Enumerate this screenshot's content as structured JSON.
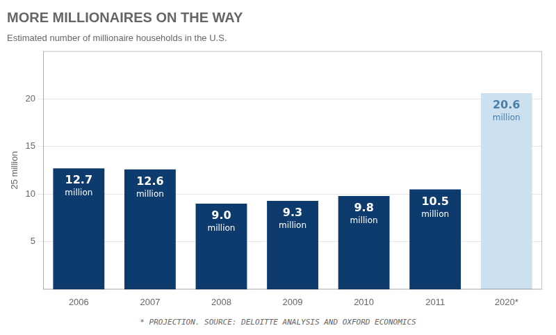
{
  "chart_data": {
    "type": "bar",
    "title": "MORE MILLIONAIRES ON THE WAY",
    "subtitle": "Estimated number of millionaire households in the U.S.",
    "y_label": "25 million",
    "annotations": [
      "* PROJECTION. SOURCE: DELOITTE ANALYSIS AND OXFORD ECONOMICS"
    ],
    "categories": [
      "2006",
      "2007",
      "2008",
      "2009",
      "2010",
      "2011",
      "2020*"
    ],
    "values": [
      12.7,
      12.6,
      9.0,
      9.3,
      9.8,
      10.5,
      20.6
    ],
    "value_labels": [
      "12.7\nmillion",
      "12.6\nmillion",
      "9.0\nmillion",
      "9.3\nmillion",
      "9.8\nmillion",
      "10.5\nmillion",
      "20.6\nmillion"
    ],
    "data_labels": true,
    "colors": [
      "#0d3b6e",
      "#0d3b6e",
      "#0d3b6e",
      "#0d3b6e",
      "#0d3b6e",
      "#0d3b6e",
      "#cce0f0"
    ],
    "ylim": [
      0,
      25
    ],
    "yticks": [
      5,
      10,
      15,
      20
    ],
    "grid": true
  }
}
